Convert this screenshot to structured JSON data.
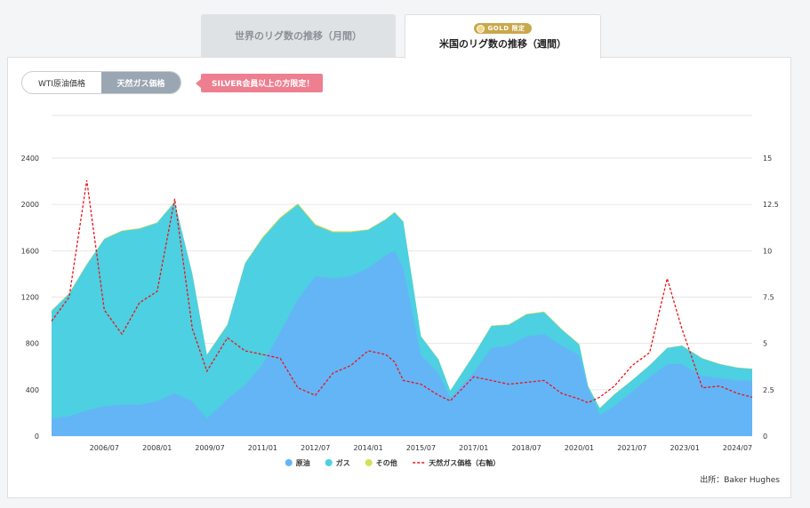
{
  "tabs": {
    "monthly": "世界のリグ数の推移（月間）",
    "weekly": "米国のリグ数の推移（週間）",
    "weekly_badge": "GOLD 限定"
  },
  "toggle": {
    "wti": "WTI原油価格",
    "gas": "天然ガス価格"
  },
  "notice": "SILVER会員以上の方限定！",
  "source": "出所：Baker Hughes",
  "colors": {
    "oil": "#64b5f6",
    "gas": "#4dd0e1",
    "other": "#d4e157",
    "price": "#e8151b",
    "badge": "#c9a84c"
  },
  "chart_data": {
    "type": "area",
    "x_tick_labels": [
      "2006/07",
      "2008/01",
      "2009/07",
      "2011/01",
      "2012/07",
      "2014/01",
      "2015/07",
      "2017/01",
      "2018/07",
      "2020/01",
      "2021/07",
      "2023/01",
      "2024/07"
    ],
    "y_left_ticks": [
      "0",
      "400",
      "800",
      "1200",
      "1600",
      "2000",
      "2400"
    ],
    "y_right_ticks": [
      "0",
      "2.5",
      "5",
      "7.5",
      "10",
      "12.5",
      "15"
    ],
    "ylim_left": [
      0,
      2400
    ],
    "ylim_right": [
      0,
      15
    ],
    "x": [
      "2005/01",
      "2005/07",
      "2006/01",
      "2006/07",
      "2007/01",
      "2007/07",
      "2008/01",
      "2008/07",
      "2009/01",
      "2009/06",
      "2010/01",
      "2010/07",
      "2011/01",
      "2011/07",
      "2012/01",
      "2012/07",
      "2013/01",
      "2013/07",
      "2014/01",
      "2014/07",
      "2014/10",
      "2015/01",
      "2015/07",
      "2016/01",
      "2016/05",
      "2017/01",
      "2017/07",
      "2018/01",
      "2018/07",
      "2019/01",
      "2019/07",
      "2020/01",
      "2020/04",
      "2020/08",
      "2021/01",
      "2021/07",
      "2022/01",
      "2022/07",
      "2022/12",
      "2023/07",
      "2024/01",
      "2024/07",
      "2024/12"
    ],
    "series": [
      {
        "name": "原油",
        "values": [
          150,
          170,
          220,
          260,
          270,
          270,
          300,
          370,
          300,
          150,
          320,
          440,
          620,
          900,
          1180,
          1380,
          1360,
          1380,
          1450,
          1560,
          1600,
          1450,
          700,
          540,
          330,
          550,
          760,
          780,
          860,
          880,
          780,
          700,
          410,
          180,
          260,
          380,
          510,
          620,
          620,
          520,
          500,
          480,
          480
        ]
      },
      {
        "name": "ガス",
        "values": [
          1080,
          1230,
          1480,
          1700,
          1770,
          1790,
          1840,
          2020,
          1400,
          700,
          960,
          1490,
          1710,
          1880,
          2000,
          1820,
          1760,
          1760,
          1780,
          1870,
          1930,
          1850,
          860,
          660,
          390,
          700,
          950,
          960,
          1050,
          1070,
          920,
          790,
          430,
          240,
          360,
          480,
          610,
          760,
          780,
          670,
          620,
          590,
          580
        ]
      },
      {
        "name": "その他",
        "values": [
          1085,
          1235,
          1485,
          1705,
          1775,
          1795,
          1845,
          2025,
          1405,
          705,
          965,
          1495,
          1720,
          1890,
          2010,
          1830,
          1768,
          1768,
          1785,
          1875,
          1935,
          1855,
          865,
          664,
          393,
          704,
          955,
          964,
          1055,
          1075,
          925,
          795,
          433,
          243,
          363,
          483,
          613,
          763,
          783,
          673,
          623,
          593,
          583
        ]
      }
    ],
    "price_series": {
      "name": "天然ガス価格（右軸）",
      "values": [
        6.2,
        7.5,
        13.8,
        6.8,
        5.5,
        7.2,
        7.8,
        12.8,
        5.8,
        3.5,
        5.3,
        4.6,
        4.4,
        4.2,
        2.6,
        2.2,
        3.4,
        3.8,
        4.6,
        4.4,
        4.0,
        3.0,
        2.8,
        2.2,
        1.9,
        3.2,
        3.0,
        2.8,
        2.9,
        3.0,
        2.3,
        2.0,
        1.8,
        2.1,
        2.7,
        3.8,
        4.5,
        8.5,
        5.8,
        2.6,
        2.7,
        2.3,
        2.1
      ]
    },
    "legend": [
      {
        "label": "原油",
        "marker": "dot",
        "color": "#64b5f6"
      },
      {
        "label": "ガス",
        "marker": "dot",
        "color": "#4dd0e1"
      },
      {
        "label": "その他",
        "marker": "dot",
        "color": "#d4e157"
      },
      {
        "label": "天然ガス価格（右軸）",
        "marker": "dash",
        "color": "#e8151b"
      }
    ],
    "legend_position": "bottom",
    "grid": true
  }
}
